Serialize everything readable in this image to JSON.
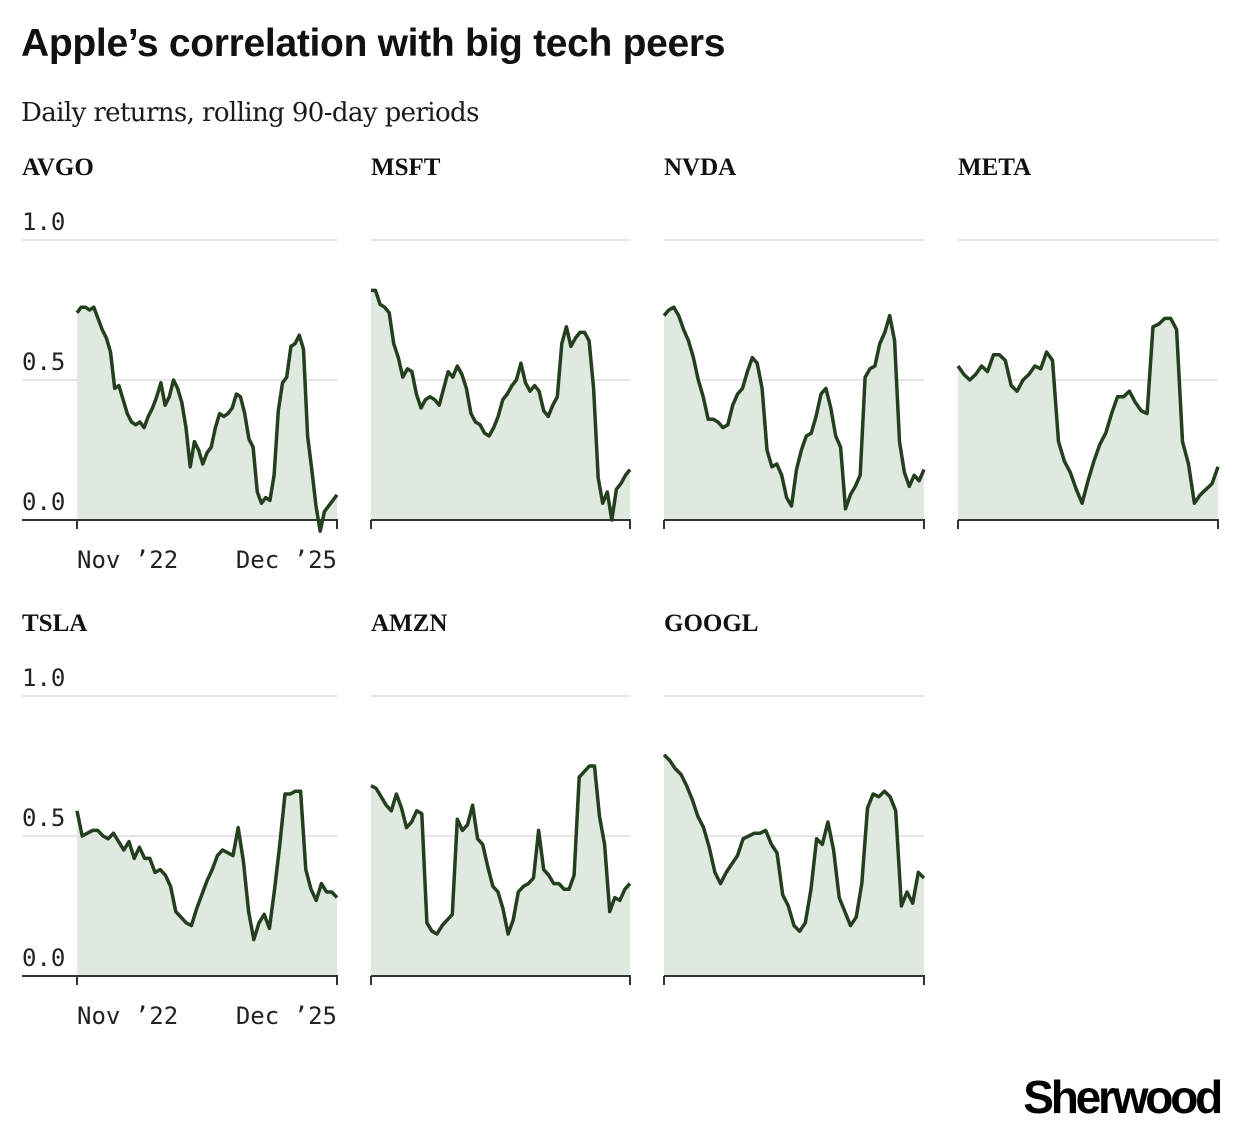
{
  "header": {
    "title": "Apple’s correlation with big tech peers",
    "subtitle": "Daily returns, rolling 90-day periods"
  },
  "brand": {
    "logo_text": "Sherwood"
  },
  "colors": {
    "line": "#233f1e",
    "fill": "#dfe9df",
    "grid": "#e6e6e6",
    "axis": "#333333"
  },
  "chart_data": {
    "type": "area",
    "layout": "small-multiples",
    "title": "Apple’s correlation with big tech peers",
    "subtitle": "Daily returns, rolling 90-day periods",
    "xlabel": "",
    "ylabel": "",
    "ylim": [
      0,
      1
    ],
    "yticks": [
      "1.0",
      "0.5",
      "0.0"
    ],
    "ytick_values": [
      1.0,
      0.5,
      0.0
    ],
    "xticks": [
      "Nov ’22",
      "Dec ’25"
    ],
    "xrange": [
      "Nov 2022",
      "Dec 2025"
    ],
    "grid": true,
    "panels": [
      {
        "name": "AVGO",
        "values": [
          0.74,
          0.76,
          0.76,
          0.75,
          0.76,
          0.72,
          0.68,
          0.65,
          0.6,
          0.47,
          0.48,
          0.43,
          0.38,
          0.35,
          0.34,
          0.35,
          0.33,
          0.37,
          0.4,
          0.44,
          0.49,
          0.41,
          0.44,
          0.5,
          0.47,
          0.42,
          0.33,
          0.19,
          0.28,
          0.25,
          0.2,
          0.24,
          0.26,
          0.33,
          0.38,
          0.37,
          0.38,
          0.4,
          0.45,
          0.44,
          0.38,
          0.29,
          0.26,
          0.1,
          0.06,
          0.08,
          0.07,
          0.16,
          0.39,
          0.49,
          0.51,
          0.62,
          0.63,
          0.66,
          0.61,
          0.3,
          0.18,
          0.05,
          -0.04,
          0.03,
          0.05,
          0.07,
          0.09
        ]
      },
      {
        "name": "MSFT",
        "values": [
          0.82,
          0.82,
          0.77,
          0.76,
          0.74,
          0.63,
          0.58,
          0.51,
          0.54,
          0.53,
          0.45,
          0.4,
          0.43,
          0.44,
          0.43,
          0.41,
          0.47,
          0.53,
          0.51,
          0.55,
          0.52,
          0.47,
          0.38,
          0.35,
          0.34,
          0.31,
          0.3,
          0.33,
          0.37,
          0.43,
          0.45,
          0.48,
          0.5,
          0.56,
          0.49,
          0.46,
          0.48,
          0.46,
          0.39,
          0.37,
          0.41,
          0.44,
          0.63,
          0.69,
          0.62,
          0.65,
          0.67,
          0.67,
          0.64,
          0.47,
          0.15,
          0.06,
          0.1,
          0.0,
          0.11,
          0.13,
          0.16,
          0.18
        ]
      },
      {
        "name": "NVDA",
        "values": [
          0.73,
          0.75,
          0.76,
          0.73,
          0.68,
          0.64,
          0.58,
          0.5,
          0.44,
          0.36,
          0.36,
          0.35,
          0.33,
          0.34,
          0.41,
          0.45,
          0.47,
          0.53,
          0.58,
          0.56,
          0.47,
          0.25,
          0.19,
          0.2,
          0.16,
          0.08,
          0.05,
          0.18,
          0.25,
          0.3,
          0.31,
          0.37,
          0.45,
          0.47,
          0.4,
          0.3,
          0.26,
          0.04,
          0.09,
          0.12,
          0.16,
          0.51,
          0.54,
          0.55,
          0.63,
          0.67,
          0.73,
          0.64,
          0.28,
          0.17,
          0.12,
          0.16,
          0.14,
          0.18
        ]
      },
      {
        "name": "META",
        "values": [
          0.55,
          0.52,
          0.5,
          0.52,
          0.55,
          0.53,
          0.59,
          0.59,
          0.57,
          0.48,
          0.46,
          0.5,
          0.52,
          0.55,
          0.54,
          0.6,
          0.57,
          0.28,
          0.21,
          0.17,
          0.11,
          0.06,
          0.14,
          0.21,
          0.27,
          0.31,
          0.38,
          0.44,
          0.44,
          0.46,
          0.42,
          0.39,
          0.38,
          0.69,
          0.7,
          0.72,
          0.72,
          0.68,
          0.28,
          0.2,
          0.06,
          0.09,
          0.11,
          0.13,
          0.19
        ]
      },
      {
        "name": "TSLA",
        "values": [
          0.59,
          0.5,
          0.51,
          0.52,
          0.52,
          0.5,
          0.49,
          0.51,
          0.48,
          0.45,
          0.48,
          0.42,
          0.46,
          0.42,
          0.42,
          0.37,
          0.38,
          0.36,
          0.32,
          0.23,
          0.21,
          0.19,
          0.18,
          0.24,
          0.29,
          0.34,
          0.38,
          0.43,
          0.45,
          0.44,
          0.43,
          0.53,
          0.41,
          0.23,
          0.13,
          0.19,
          0.22,
          0.17,
          0.31,
          0.47,
          0.65,
          0.65,
          0.66,
          0.66,
          0.38,
          0.31,
          0.27,
          0.33,
          0.3,
          0.3,
          0.28
        ]
      },
      {
        "name": "AMZN",
        "values": [
          0.68,
          0.67,
          0.64,
          0.61,
          0.59,
          0.65,
          0.6,
          0.53,
          0.55,
          0.59,
          0.58,
          0.19,
          0.16,
          0.15,
          0.18,
          0.2,
          0.22,
          0.56,
          0.52,
          0.54,
          0.61,
          0.49,
          0.47,
          0.39,
          0.32,
          0.3,
          0.24,
          0.15,
          0.2,
          0.3,
          0.32,
          0.33,
          0.35,
          0.52,
          0.38,
          0.36,
          0.33,
          0.33,
          0.31,
          0.31,
          0.36,
          0.71,
          0.73,
          0.75,
          0.75,
          0.57,
          0.47,
          0.23,
          0.28,
          0.27,
          0.31,
          0.33
        ]
      },
      {
        "name": "GOOGL",
        "values": [
          0.79,
          0.77,
          0.74,
          0.72,
          0.68,
          0.63,
          0.57,
          0.53,
          0.46,
          0.37,
          0.33,
          0.37,
          0.4,
          0.43,
          0.49,
          0.5,
          0.51,
          0.51,
          0.52,
          0.47,
          0.44,
          0.29,
          0.25,
          0.18,
          0.16,
          0.19,
          0.31,
          0.49,
          0.47,
          0.55,
          0.45,
          0.28,
          0.23,
          0.18,
          0.21,
          0.33,
          0.6,
          0.65,
          0.64,
          0.66,
          0.64,
          0.59,
          0.25,
          0.3,
          0.26,
          0.37,
          0.35
        ]
      }
    ]
  }
}
